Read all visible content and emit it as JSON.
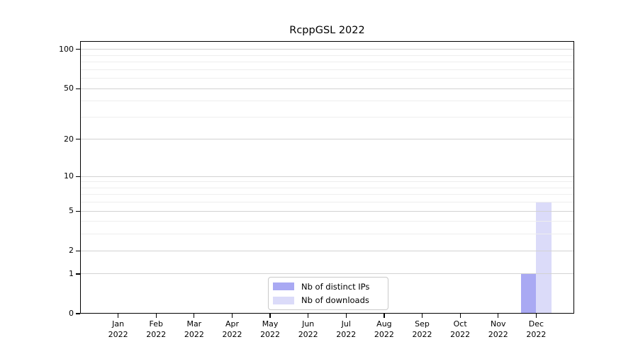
{
  "title": "RcppGSL 2022",
  "chart_data": {
    "type": "bar",
    "title": "RcppGSL 2022",
    "categories": [
      "Jan 2022",
      "Feb 2022",
      "Mar 2022",
      "Apr 2022",
      "May 2022",
      "Jun 2022",
      "Jul 2022",
      "Aug 2022",
      "Sep 2022",
      "Oct 2022",
      "Nov 2022",
      "Dec 2022"
    ],
    "series": [
      {
        "name": "Nb of distinct IPs",
        "color": "#a9a9f3",
        "values": [
          0,
          0,
          0,
          0,
          0,
          0,
          0,
          0,
          0,
          0,
          0,
          1
        ]
      },
      {
        "name": "Nb of downloads",
        "color": "#dbdbf9",
        "values": [
          0,
          0,
          0,
          0,
          0,
          0,
          0,
          0,
          0,
          0,
          0,
          6
        ]
      }
    ],
    "xlabel": "",
    "ylabel": "",
    "yscale": "log1p",
    "ylim": [
      0,
      116
    ],
    "yticks": [
      0,
      1,
      2,
      5,
      10,
      20,
      50,
      100
    ],
    "yticks_minor": [
      3,
      4,
      6,
      7,
      8,
      9,
      30,
      40,
      60,
      70,
      80,
      90
    ],
    "grid": true,
    "legend_position": "lower center",
    "colors": {
      "axis": "#000000",
      "text": "#000000",
      "grid_major": "#d2d2d2",
      "grid_minor": "#eeeeee",
      "legend_border": "#c9c9c9",
      "background": "#ffffff"
    }
  }
}
